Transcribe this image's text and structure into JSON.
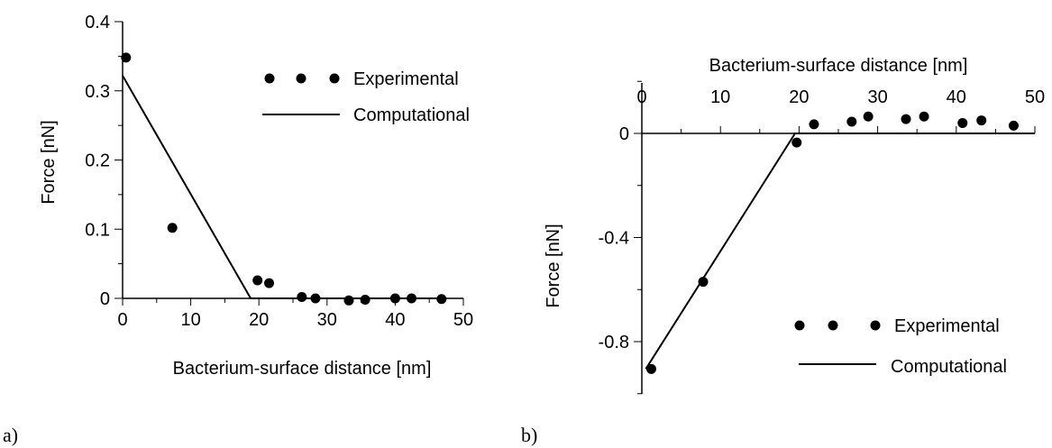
{
  "chart_data": [
    {
      "type": "scatter",
      "panel_label": "a)",
      "xlabel": "Bacterium-surface distance [nm]",
      "ylabel": "Force [nN]",
      "xlim": [
        0,
        50
      ],
      "ylim": [
        0,
        0.4
      ],
      "xticks": [
        "0",
        "10",
        "20",
        "30",
        "40",
        "50"
      ],
      "yticks": [
        "0",
        "0.1",
        "0.2",
        "0.3",
        "0.4"
      ],
      "x_axis_position": "bottom",
      "legend_position": "top-right",
      "grid": false,
      "series": [
        {
          "name": "Experimental",
          "style": "markers",
          "color": "#000000",
          "points": [
            [
              0.5,
              0.348
            ],
            [
              7.3,
              0.102
            ],
            [
              19.8,
              0.026
            ],
            [
              21.5,
              0.022
            ],
            [
              26.3,
              0.002
            ],
            [
              28.3,
              0.0
            ],
            [
              33.2,
              -0.003
            ],
            [
              35.6,
              -0.002
            ],
            [
              40.0,
              0.0
            ],
            [
              42.4,
              0.0
            ],
            [
              46.8,
              -0.001
            ]
          ]
        },
        {
          "name": "Computational",
          "style": "line",
          "color": "#000000",
          "points": [
            [
              0,
              0.322
            ],
            [
              18.8,
              0
            ],
            [
              47.5,
              0
            ]
          ]
        }
      ]
    },
    {
      "type": "scatter",
      "panel_label": "b)",
      "xlabel": "Bacterium-surface distance [nm]",
      "ylabel": "Force [nN]",
      "xlim": [
        0,
        50
      ],
      "ylim": [
        -1.0,
        0.2
      ],
      "xticks": [
        "0",
        "10",
        "20",
        "30",
        "40",
        "50"
      ],
      "yticks": [
        "-0.8",
        "-0.4",
        "0"
      ],
      "x_axis_position": "top",
      "legend_position": "bottom-right",
      "grid": false,
      "series": [
        {
          "name": "Experimental",
          "style": "markers",
          "color": "#000000",
          "points": [
            [
              1.2,
              -0.905
            ],
            [
              7.8,
              -0.57
            ],
            [
              19.7,
              -0.035
            ],
            [
              21.9,
              0.035
            ],
            [
              26.7,
              0.045
            ],
            [
              28.8,
              0.065
            ],
            [
              33.6,
              0.055
            ],
            [
              35.9,
              0.065
            ],
            [
              40.8,
              0.04
            ],
            [
              43.2,
              0.05
            ],
            [
              47.3,
              0.03
            ]
          ]
        },
        {
          "name": "Computational",
          "style": "line",
          "color": "#000000",
          "points": [
            [
              0.5,
              -0.905
            ],
            [
              19.5,
              0
            ],
            [
              50,
              0
            ]
          ]
        }
      ]
    }
  ]
}
